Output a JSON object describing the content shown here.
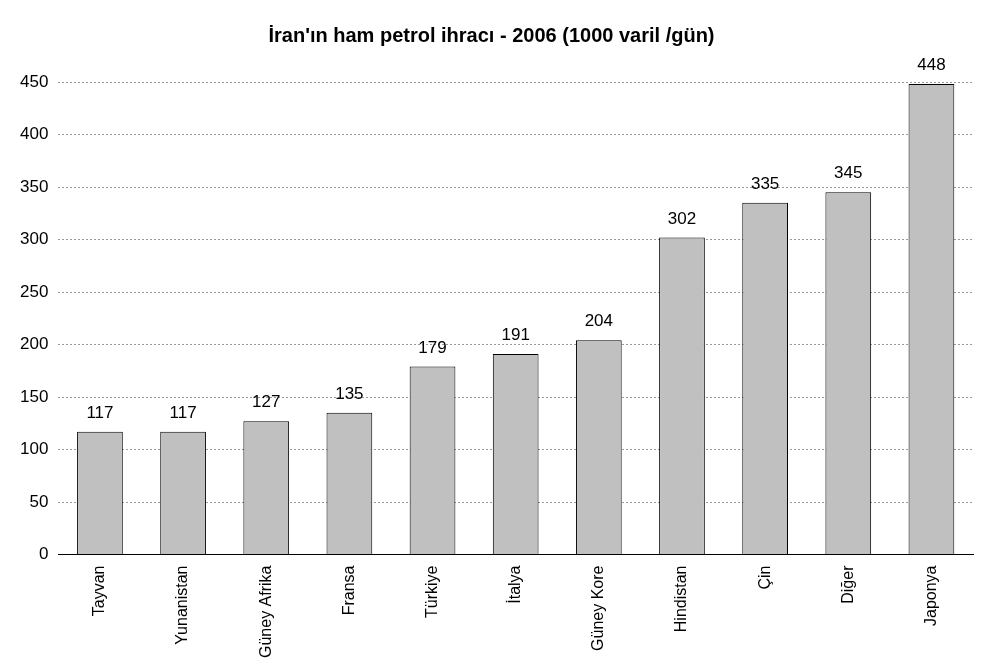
{
  "chart_data": {
    "type": "bar",
    "title": "İran'ın ham petrol ihracı - 2006 (1000 varil /gün)",
    "categories": [
      "Tayvan",
      "Yunanistan",
      "Güney Afrika",
      "Fransa",
      "Türkiye",
      "İtalya",
      "Güney Kore",
      "Hindistan",
      "Çin",
      "Diğer",
      "Japonya"
    ],
    "values": [
      117,
      117,
      127,
      135,
      179,
      191,
      204,
      302,
      335,
      345,
      448
    ],
    "color": "#c0c0c0",
    "ylim": [
      0,
      450
    ],
    "yticks": [
      0,
      50,
      100,
      150,
      200,
      250,
      300,
      350,
      400,
      450
    ],
    "grid": true,
    "data_labels": true
  }
}
